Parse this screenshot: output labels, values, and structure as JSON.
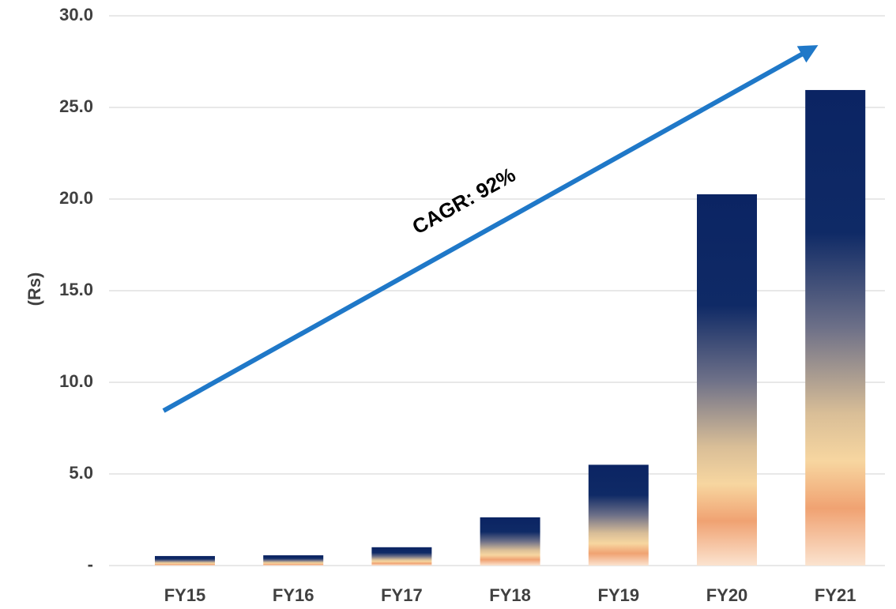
{
  "chart_data": {
    "type": "bar",
    "y_label": "(Rs)",
    "annotation": "CAGR: 92%",
    "categories": [
      "FY15",
      "FY16",
      "FY17",
      "FY18",
      "FY19",
      "FY20",
      "FY21"
    ],
    "values": [
      0.52,
      0.56,
      1.0,
      2.63,
      5.5,
      20.26,
      25.95
    ],
    "ylim": [
      0,
      30
    ],
    "yticks": [
      {
        "value": 0,
        "label": "-"
      },
      {
        "value": 5,
        "label": "5.0"
      },
      {
        "value": 10,
        "label": "10.0"
      },
      {
        "value": 15,
        "label": "15.0"
      },
      {
        "value": 20,
        "label": "20.0"
      },
      {
        "value": 25,
        "label": "25.0"
      },
      {
        "value": 30,
        "label": "30.0"
      }
    ],
    "grid": true
  }
}
